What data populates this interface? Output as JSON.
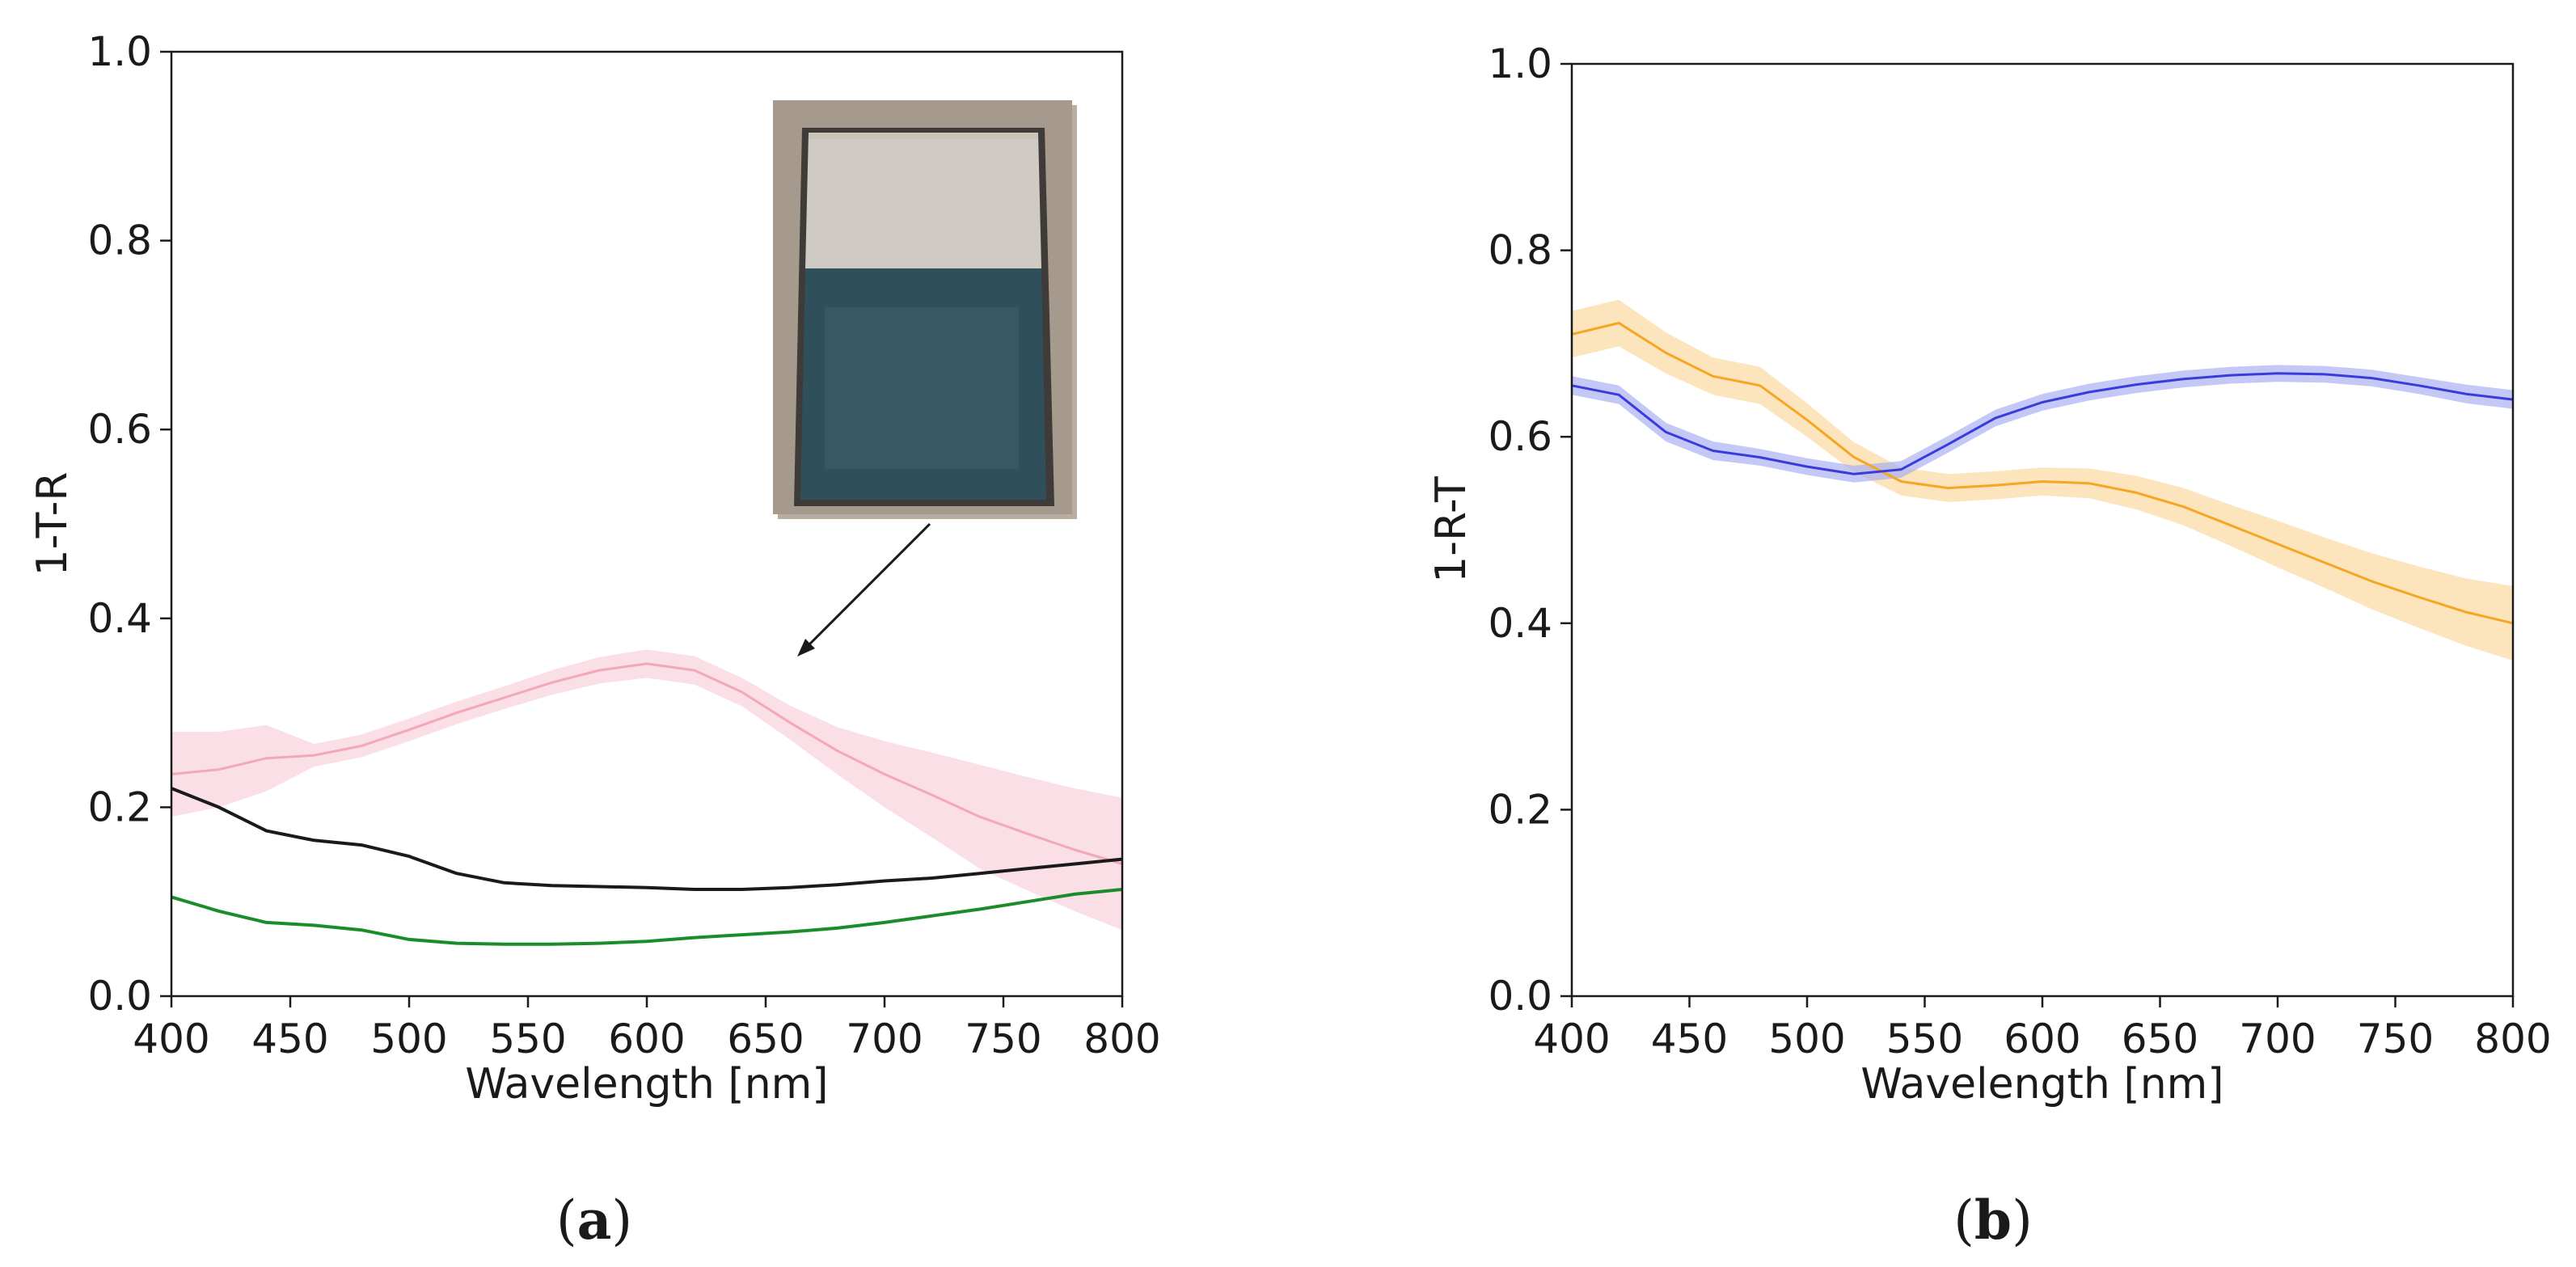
{
  "panels": [
    {
      "panel_label": "a",
      "chart_data": {
        "type": "line",
        "title": "",
        "xlabel": "Wavelength [nm]",
        "ylabel": "1-T-R",
        "xlim": [
          400,
          800
        ],
        "ylim": [
          0,
          1
        ],
        "xticks": [
          "400",
          "450",
          "500",
          "550",
          "600",
          "650",
          "700",
          "750",
          "800"
        ],
        "yticks": [
          "0.0",
          "0.2",
          "0.4",
          "0.6",
          "0.8",
          "1.0"
        ],
        "grid": false,
        "legend": "none",
        "series": [
          {
            "color": "#f4a7b9",
            "band_color": "#f9d2dc",
            "x": [
              400,
              420,
              440,
              460,
              480,
              500,
              520,
              540,
              560,
              580,
              600,
              620,
              640,
              660,
              680,
              700,
              720,
              740,
              760,
              780,
              800
            ],
            "y": [
              0.235,
              0.24,
              0.252,
              0.255,
              0.265,
              0.282,
              0.3,
              0.316,
              0.332,
              0.345,
              0.352,
              0.345,
              0.322,
              0.29,
              0.26,
              0.235,
              0.213,
              0.19,
              0.172,
              0.155,
              0.14
            ],
            "band": [
              0.045,
              0.04,
              0.035,
              0.012,
              0.012,
              0.012,
              0.012,
              0.012,
              0.013,
              0.014,
              0.015,
              0.015,
              0.015,
              0.018,
              0.025,
              0.035,
              0.045,
              0.055,
              0.06,
              0.065,
              0.07
            ]
          },
          {
            "color": "#1a1a1a",
            "x": [
              400,
              420,
              440,
              460,
              480,
              500,
              520,
              540,
              560,
              580,
              600,
              620,
              640,
              660,
              680,
              700,
              720,
              740,
              760,
              780,
              800
            ],
            "y": [
              0.22,
              0.2,
              0.175,
              0.165,
              0.16,
              0.148,
              0.13,
              0.12,
              0.117,
              0.116,
              0.115,
              0.113,
              0.113,
              0.115,
              0.118,
              0.122,
              0.125,
              0.13,
              0.135,
              0.14,
              0.145
            ]
          },
          {
            "color": "#1a8c2a",
            "x": [
              400,
              420,
              440,
              460,
              480,
              500,
              520,
              540,
              560,
              580,
              600,
              620,
              640,
              660,
              680,
              700,
              720,
              740,
              760,
              780,
              800
            ],
            "y": [
              0.105,
              0.09,
              0.078,
              0.075,
              0.07,
              0.06,
              0.056,
              0.055,
              0.055,
              0.056,
              0.058,
              0.062,
              0.065,
              0.068,
              0.072,
              0.078,
              0.085,
              0.092,
              0.1,
              0.108,
              0.113
            ]
          }
        ],
        "inset": {
          "description_visible": false,
          "colors": [
            "#cfcac4",
            "#cbc4b9",
            "#2f4f5b",
            "#3a5d68"
          ]
        }
      }
    },
    {
      "panel_label": "b",
      "chart_data": {
        "type": "line",
        "title": "",
        "xlabel": "Wavelength [nm]",
        "ylabel": "1-R-T",
        "xlim": [
          400,
          800
        ],
        "ylim": [
          0,
          1
        ],
        "xticks": [
          "400",
          "450",
          "500",
          "550",
          "600",
          "650",
          "700",
          "750",
          "800"
        ],
        "yticks": [
          "0.0",
          "0.2",
          "0.4",
          "0.6",
          "0.8",
          "1.0"
        ],
        "grid": false,
        "legend": "none",
        "series": [
          {
            "color": "#f5a623",
            "band_color": "#fbd9a0",
            "x": [
              400,
              420,
              440,
              460,
              480,
              500,
              520,
              540,
              560,
              580,
              600,
              620,
              640,
              660,
              680,
              700,
              720,
              740,
              760,
              780,
              800
            ],
            "y": [
              0.71,
              0.722,
              0.69,
              0.665,
              0.655,
              0.618,
              0.578,
              0.552,
              0.545,
              0.548,
              0.552,
              0.55,
              0.54,
              0.525,
              0.505,
              0.485,
              0.465,
              0.445,
              0.428,
              0.412,
              0.4
            ],
            "band": [
              0.025,
              0.025,
              0.022,
              0.02,
              0.02,
              0.018,
              0.016,
              0.015,
              0.015,
              0.015,
              0.015,
              0.016,
              0.018,
              0.02,
              0.022,
              0.025,
              0.027,
              0.03,
              0.033,
              0.036,
              0.04
            ]
          },
          {
            "color": "#3b3bdb",
            "band_color": "#aab0f2",
            "x": [
              400,
              420,
              440,
              460,
              480,
              500,
              520,
              540,
              560,
              580,
              600,
              620,
              640,
              660,
              680,
              700,
              720,
              740,
              760,
              780,
              800
            ],
            "y": [
              0.655,
              0.645,
              0.605,
              0.585,
              0.578,
              0.568,
              0.56,
              0.565,
              0.592,
              0.62,
              0.637,
              0.648,
              0.656,
              0.662,
              0.666,
              0.668,
              0.667,
              0.663,
              0.655,
              0.646,
              0.64
            ],
            "band": [
              0.01,
              0.01,
              0.01,
              0.01,
              0.009,
              0.009,
              0.009,
              0.009,
              0.009,
              0.009,
              0.009,
              0.009,
              0.009,
              0.009,
              0.009,
              0.009,
              0.009,
              0.009,
              0.009,
              0.01,
              0.01
            ]
          }
        ]
      }
    }
  ]
}
